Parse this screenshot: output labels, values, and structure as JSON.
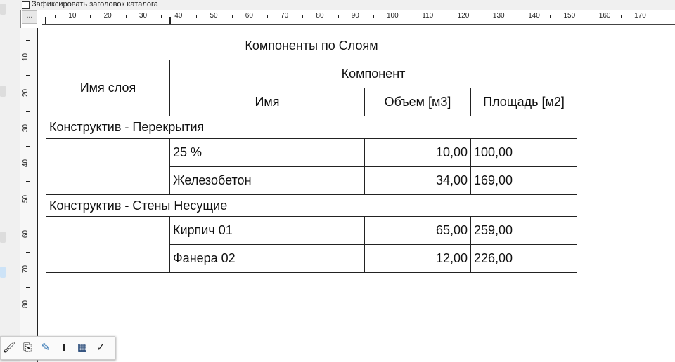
{
  "topbar": {
    "lock_header_label": "Зафиксировать заголовок каталога"
  },
  "ruler": {
    "corner_button": "...",
    "h_labels": [
      "10",
      "20",
      "30",
      "40",
      "50",
      "60",
      "70",
      "80",
      "90",
      "100",
      "110",
      "120",
      "130",
      "140",
      "150",
      "160",
      "170"
    ],
    "v_labels": [
      "10",
      "20",
      "30",
      "40",
      "50",
      "60",
      "70",
      "80"
    ]
  },
  "table": {
    "title": "Компоненты по Слоям",
    "layer_header": "Имя слоя",
    "component_header": "Компонент",
    "columns": [
      "Имя",
      "Объем [м3]",
      "Площадь [м2]"
    ],
    "groups": [
      {
        "layer": "Конструктив - Перекрытия",
        "rows": [
          [
            "25 %",
            "10,00",
            "100,00"
          ],
          [
            "Железобетон",
            "34,00",
            "169,00"
          ]
        ]
      },
      {
        "layer": "Конструктив - Стены Несущие",
        "rows": [
          [
            "Кирпич 01",
            "65,00",
            "259,00"
          ],
          [
            "Фанера 02",
            "12,00",
            "226,00"
          ]
        ]
      }
    ]
  },
  "toolbar": {
    "icons": [
      "brush-icon",
      "text-block-icon",
      "edit-table-icon",
      "i-beam-icon",
      "grid-icon",
      "checklist-icon"
    ]
  }
}
